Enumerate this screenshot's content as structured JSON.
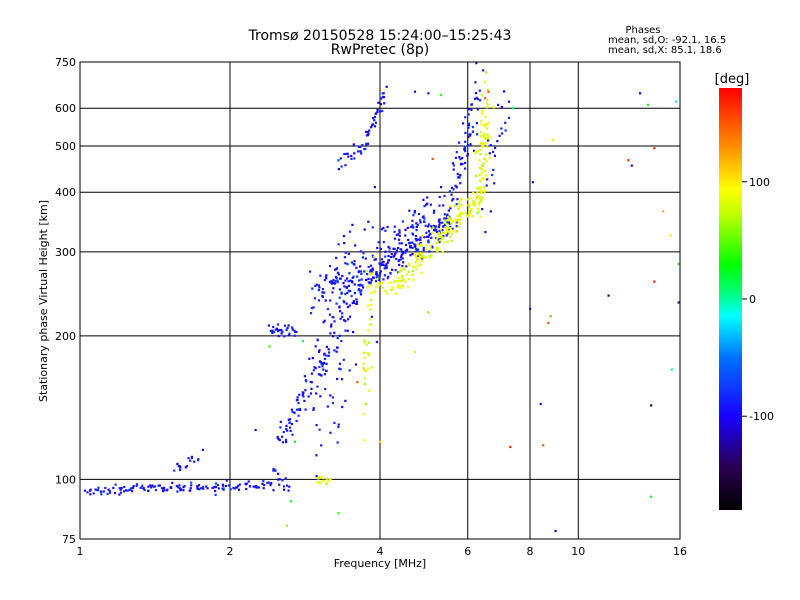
{
  "chart_data": {
    "type": "scatter",
    "title": "Tromsø 20150528 15:24:00–15:25:43",
    "subtitle": "RwPretec (8p)",
    "xlabel": "Frequency [MHz]",
    "ylabel": "Stationary phase Virtual Height [km]",
    "xscale": "log",
    "yscale": "log",
    "xlim": [
      1,
      16
    ],
    "ylim": [
      75,
      750
    ],
    "xticks": [
      1,
      2,
      4,
      6,
      8,
      10,
      16
    ],
    "yticks": [
      75,
      100,
      200,
      300,
      400,
      500,
      600,
      750
    ],
    "grid": true,
    "legend": {
      "title": "Phases",
      "o_stats": "mean, sd,O: -92.1, 16.5",
      "x_stats": "mean, sd,X:  85.1, 18.6"
    },
    "colorbar": {
      "label": "[deg]",
      "range": [
        -180,
        180
      ],
      "ticks": [
        -100,
        0,
        100
      ]
    },
    "series": [
      {
        "name": "O-mode (blue, phase ≈ -92)",
        "phase": -92,
        "segments": [
          {
            "x0": 1.03,
            "x1": 2.45,
            "y0": 95,
            "y1": 97,
            "n": 140,
            "sx": 0.01,
            "sy": 0.012
          },
          {
            "x0": 1.55,
            "x1": 1.75,
            "y0": 104,
            "y1": 114,
            "n": 16,
            "sx": 0.01,
            "sy": 0.015
          },
          {
            "x0": 2.42,
            "x1": 2.65,
            "y0": 104,
            "y1": 96,
            "n": 14,
            "sx": 0.008,
            "sy": 0.02
          },
          {
            "x0": 2.4,
            "x1": 2.7,
            "y0": 205,
            "y1": 204,
            "n": 30,
            "sx": 0.006,
            "sy": 0.018
          },
          {
            "x0": 2.5,
            "x1": 3.15,
            "y0": 118,
            "y1": 185,
            "n": 75,
            "sx": 0.012,
            "sy": 0.035
          },
          {
            "x0": 3.0,
            "x1": 3.7,
            "y0": 150,
            "y1": 300,
            "n": 130,
            "sx": 0.035,
            "sy": 0.18
          },
          {
            "x0": 3.0,
            "x1": 3.9,
            "y0": 250,
            "y1": 270,
            "n": 90,
            "sx": 0.03,
            "sy": 0.06
          },
          {
            "x0": 3.8,
            "x1": 5.5,
            "y0": 265,
            "y1": 345,
            "n": 140,
            "sx": 0.015,
            "sy": 0.035
          },
          {
            "x0": 4.0,
            "x1": 5.3,
            "y0": 300,
            "y1": 380,
            "n": 90,
            "sx": 0.03,
            "sy": 0.07
          },
          {
            "x0": 3.3,
            "x1": 3.75,
            "y0": 460,
            "y1": 500,
            "n": 22,
            "sx": 0.008,
            "sy": 0.02
          },
          {
            "x0": 3.75,
            "x1": 4.1,
            "y0": 505,
            "y1": 650,
            "n": 32,
            "sx": 0.006,
            "sy": 0.02
          },
          {
            "x0": 5.5,
            "x1": 6.3,
            "y0": 360,
            "y1": 650,
            "n": 80,
            "sx": 0.012,
            "sy": 0.08
          },
          {
            "x0": 6.5,
            "x1": 7.2,
            "y0": 380,
            "y1": 620,
            "n": 25,
            "sx": 0.02,
            "sy": 0.08
          }
        ]
      },
      {
        "name": "X-mode (yellow, phase ≈ 85)",
        "phase": 85,
        "segments": [
          {
            "x0": 3.0,
            "x1": 3.15,
            "y0": 99,
            "y1": 100,
            "n": 14,
            "sx": 0.01,
            "sy": 0.01
          },
          {
            "x0": 3.7,
            "x1": 3.85,
            "y0": 150,
            "y1": 250,
            "n": 35,
            "sx": 0.01,
            "sy": 0.1
          },
          {
            "x0": 3.9,
            "x1": 4.5,
            "y0": 252,
            "y1": 258,
            "n": 30,
            "sx": 0.012,
            "sy": 0.02
          },
          {
            "x0": 4.4,
            "x1": 5.6,
            "y0": 265,
            "y1": 340,
            "n": 90,
            "sx": 0.015,
            "sy": 0.035
          },
          {
            "x0": 5.5,
            "x1": 6.4,
            "y0": 340,
            "y1": 400,
            "n": 70,
            "sx": 0.018,
            "sy": 0.035
          },
          {
            "x0": 6.3,
            "x1": 6.6,
            "y0": 390,
            "y1": 610,
            "n": 80,
            "sx": 0.01,
            "sy": 0.1
          }
        ]
      }
    ],
    "scattered_points": [
      {
        "x": 4.7,
        "y": 650,
        "phase": -95
      },
      {
        "x": 5.0,
        "y": 645,
        "phase": -100
      },
      {
        "x": 5.3,
        "y": 640,
        "phase": 40
      },
      {
        "x": 5.1,
        "y": 470,
        "phase": 150
      },
      {
        "x": 6.6,
        "y": 650,
        "phase": 150
      },
      {
        "x": 6.9,
        "y": 610,
        "phase": -90
      },
      {
        "x": 6.5,
        "y": 630,
        "phase": 150
      },
      {
        "x": 7.4,
        "y": 600,
        "phase": 10
      },
      {
        "x": 8.1,
        "y": 420,
        "phase": -110
      },
      {
        "x": 8.9,
        "y": 515,
        "phase": 100
      },
      {
        "x": 8.0,
        "y": 228,
        "phase": -110
      },
      {
        "x": 8.7,
        "y": 213,
        "phase": 150
      },
      {
        "x": 8.8,
        "y": 220,
        "phase": 130
      },
      {
        "x": 8.4,
        "y": 144,
        "phase": -95
      },
      {
        "x": 8.5,
        "y": 118,
        "phase": 150
      },
      {
        "x": 7.3,
        "y": 117,
        "phase": 170
      },
      {
        "x": 9.0,
        "y": 78,
        "phase": -110
      },
      {
        "x": 5.0,
        "y": 224,
        "phase": 60
      },
      {
        "x": 4.7,
        "y": 185,
        "phase": 100
      },
      {
        "x": 4.0,
        "y": 120,
        "phase": 110
      },
      {
        "x": 3.3,
        "y": 85,
        "phase": 40
      },
      {
        "x": 2.65,
        "y": 90,
        "phase": 30
      },
      {
        "x": 2.6,
        "y": 80,
        "phase": 60
      },
      {
        "x": 2.25,
        "y": 127,
        "phase": -100
      },
      {
        "x": 2.8,
        "y": 195,
        "phase": 10
      },
      {
        "x": 2.4,
        "y": 190,
        "phase": 40
      },
      {
        "x": 2.7,
        "y": 120,
        "phase": 20
      },
      {
        "x": 3.6,
        "y": 160,
        "phase": 150
      },
      {
        "x": 11.5,
        "y": 243,
        "phase": -140
      },
      {
        "x": 12.6,
        "y": 467,
        "phase": 170
      },
      {
        "x": 12.8,
        "y": 455,
        "phase": -100
      },
      {
        "x": 13.3,
        "y": 645,
        "phase": -100
      },
      {
        "x": 13.8,
        "y": 610,
        "phase": 30
      },
      {
        "x": 14.2,
        "y": 495,
        "phase": 160
      },
      {
        "x": 14.2,
        "y": 260,
        "phase": 170
      },
      {
        "x": 14.8,
        "y": 365,
        "phase": 120
      },
      {
        "x": 15.3,
        "y": 325,
        "phase": 100
      },
      {
        "x": 15.4,
        "y": 170,
        "phase": 0
      },
      {
        "x": 15.7,
        "y": 620,
        "phase": -20
      },
      {
        "x": 15.9,
        "y": 283,
        "phase": 20
      },
      {
        "x": 15.9,
        "y": 235,
        "phase": -120
      },
      {
        "x": 14.0,
        "y": 143,
        "phase": -160
      },
      {
        "x": 14.0,
        "y": 92,
        "phase": 20
      }
    ]
  }
}
